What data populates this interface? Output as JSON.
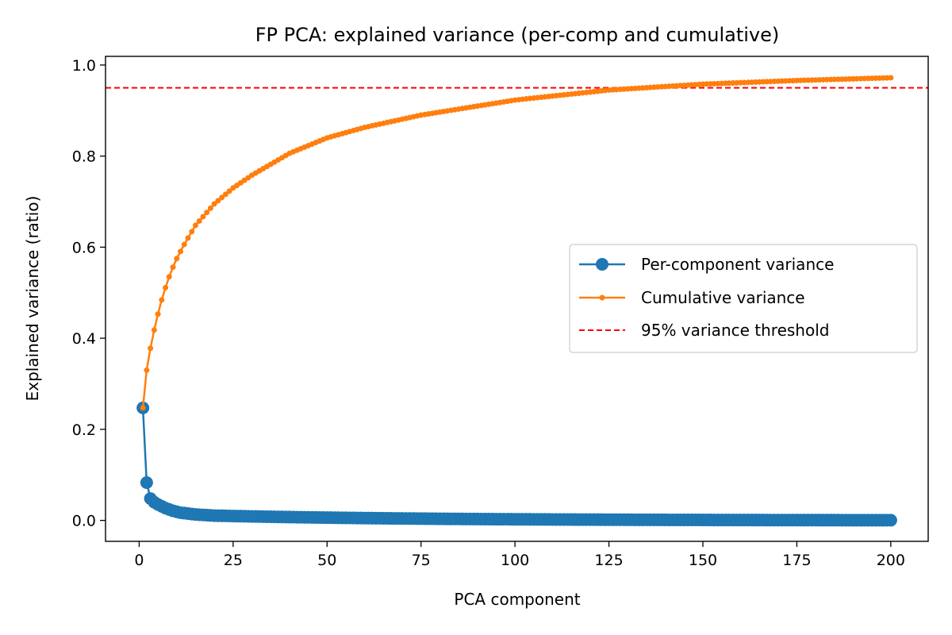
{
  "chart_data": {
    "type": "line",
    "title": "FP PCA: explained variance (per-comp and cumulative)",
    "xlabel": "PCA component",
    "ylabel": "Explained variance (ratio)",
    "xlim": [
      -8.95,
      209.95
    ],
    "ylim": [
      -0.046,
      1.019
    ],
    "xticks": [
      0,
      25,
      50,
      75,
      100,
      125,
      150,
      175,
      200
    ],
    "yticks": [
      0.0,
      0.2,
      0.4,
      0.6,
      0.8,
      1.0
    ],
    "ytick_labels": [
      "0.0",
      "0.2",
      "0.4",
      "0.6",
      "0.8",
      "1.0"
    ],
    "grid": false,
    "legend_position": "center-right",
    "n_components": 200,
    "series": [
      {
        "name": "Per-component variance",
        "color": "#1f77b4",
        "marker": "large-circle",
        "x_start": 1,
        "x_end": 200,
        "values_first": [
          0.247,
          0.083,
          0.048,
          0.04,
          0.035,
          0.031,
          0.027,
          0.024,
          0.021,
          0.019,
          0.017,
          0.016,
          0.015,
          0.014,
          0.013,
          0.0125,
          0.012,
          0.0115,
          0.011,
          0.0105
        ],
        "tail_decay": "approx 0.010 at x=20 decaying to ~0.0004 at x=200"
      },
      {
        "name": "Cumulative variance",
        "color": "#ff7f0e",
        "marker": "small-dot",
        "x_start": 1,
        "x_end": 200,
        "anchor_x": [
          1,
          2,
          3,
          4,
          5,
          6,
          7,
          8,
          9,
          10,
          12,
          15,
          20,
          25,
          30,
          40,
          50,
          60,
          75,
          100,
          125,
          150,
          175,
          200
        ],
        "anchor_y": [
          0.247,
          0.33,
          0.378,
          0.418,
          0.453,
          0.484,
          0.511,
          0.535,
          0.556,
          0.575,
          0.606,
          0.648,
          0.695,
          0.73,
          0.758,
          0.806,
          0.84,
          0.863,
          0.89,
          0.923,
          0.945,
          0.958,
          0.966,
          0.972
        ]
      }
    ],
    "reference_lines": [
      {
        "name": "95% variance threshold",
        "y": 0.95,
        "color": "#ff0000",
        "style": "dashed"
      }
    ]
  }
}
